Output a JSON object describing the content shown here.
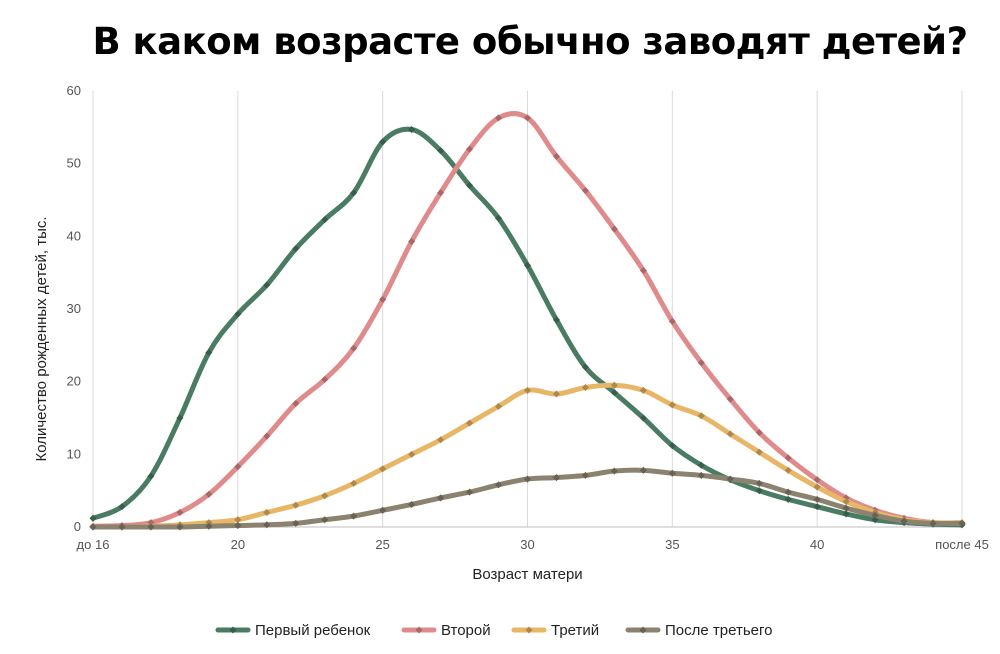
{
  "title": "В каком возрасте обычно заводят детей?",
  "chart_data": {
    "type": "line",
    "xlabel": "Возраст матери",
    "ylabel": "Количество рожденных детей, тыс.",
    "xlim": [
      15,
      45
    ],
    "ylim": [
      0,
      60
    ],
    "yticks": [
      0,
      10,
      20,
      30,
      40,
      50,
      60
    ],
    "xticks": [
      {
        "x": 15,
        "label": "до 16"
      },
      {
        "x": 20,
        "label": "20"
      },
      {
        "x": 25,
        "label": "25"
      },
      {
        "x": 30,
        "label": "30"
      },
      {
        "x": 35,
        "label": "35"
      },
      {
        "x": 40,
        "label": "40"
      },
      {
        "x": 45,
        "label": "после 45"
      }
    ],
    "grid": "vertical",
    "legend_position": "bottom",
    "x": [
      15,
      16,
      17,
      18,
      19,
      20,
      21,
      22,
      23,
      24,
      25,
      26,
      27,
      28,
      29,
      30,
      31,
      32,
      33,
      34,
      35,
      36,
      37,
      38,
      39,
      40,
      41,
      42,
      43,
      44,
      45
    ],
    "series": [
      {
        "name": "Первый ребенок",
        "color": "#4a7c63",
        "values": [
          1.2,
          2.8,
          7.0,
          15.0,
          24.0,
          29.3,
          33.3,
          38.3,
          42.3,
          46.0,
          53.0,
          54.7,
          51.8,
          47.0,
          42.5,
          36.0,
          28.5,
          22.0,
          18.5,
          15.0,
          11.2,
          8.5,
          6.5,
          5.0,
          3.8,
          2.8,
          1.8,
          1.0,
          0.6,
          0.4,
          0.3
        ]
      },
      {
        "name": "Второй",
        "color": "#e08b8b",
        "values": [
          0.1,
          0.2,
          0.6,
          2.0,
          4.5,
          8.3,
          12.5,
          17.0,
          20.3,
          24.6,
          31.3,
          39.3,
          46.0,
          52.0,
          56.3,
          56.3,
          51.0,
          46.3,
          41.0,
          35.3,
          28.3,
          22.6,
          17.6,
          13.0,
          9.5,
          6.5,
          4.0,
          2.3,
          1.2,
          0.6,
          0.5
        ]
      },
      {
        "name": "Третий",
        "color": "#e8b667",
        "values": [
          0.0,
          0.0,
          0.1,
          0.3,
          0.6,
          1.0,
          2.0,
          3.0,
          4.3,
          6.0,
          8.0,
          10.0,
          12.0,
          14.3,
          16.6,
          18.8,
          18.3,
          19.2,
          19.5,
          18.8,
          16.8,
          15.3,
          12.8,
          10.3,
          7.8,
          5.5,
          3.5,
          2.0,
          1.0,
          0.6,
          0.6
        ]
      },
      {
        "name": "После третьего",
        "color": "#8c8270",
        "values": [
          0.0,
          0.0,
          0.0,
          0.0,
          0.1,
          0.2,
          0.3,
          0.5,
          1.0,
          1.5,
          2.3,
          3.1,
          4.0,
          4.8,
          5.8,
          6.6,
          6.8,
          7.1,
          7.7,
          7.8,
          7.4,
          7.1,
          6.6,
          6.0,
          4.8,
          3.8,
          2.6,
          1.6,
          0.8,
          0.5,
          0.5
        ]
      }
    ]
  }
}
